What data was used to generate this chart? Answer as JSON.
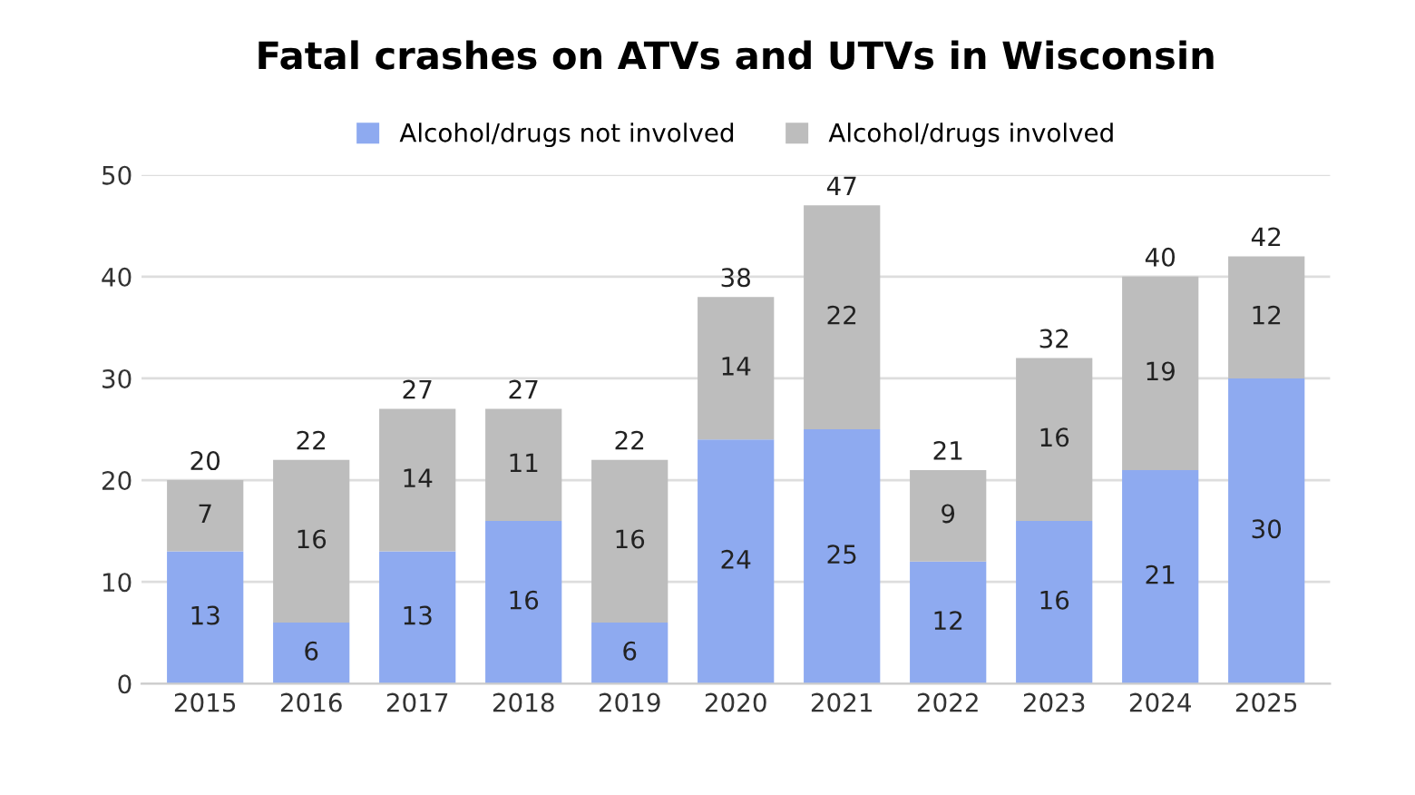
{
  "chart_data": {
    "type": "bar",
    "title": "Fatal crashes on ATVs and UTVs in Wisconsin",
    "categories": [
      "2015",
      "2016",
      "2017",
      "2018",
      "2019",
      "2020",
      "2021",
      "2022",
      "2023",
      "2024",
      "2025"
    ],
    "series": [
      {
        "name": "Alcohol/drugs not involved",
        "color": "#8eaaf0",
        "values": [
          13,
          6,
          13,
          16,
          6,
          24,
          25,
          12,
          16,
          21,
          30
        ]
      },
      {
        "name": "Alcohol/drugs involved",
        "color": "#bdbdbd",
        "values": [
          7,
          16,
          14,
          11,
          16,
          14,
          22,
          9,
          16,
          19,
          12
        ]
      }
    ],
    "stacked": true,
    "data_labels": true,
    "totals": [
      "20",
      "22",
      "27",
      "27",
      "22",
      "38",
      "47",
      "21",
      "32",
      "40",
      "42"
    ],
    "ylim": [
      0,
      50
    ],
    "yticks": [
      0,
      10,
      20,
      30,
      40,
      50
    ],
    "grid": "y",
    "legend": "top"
  }
}
